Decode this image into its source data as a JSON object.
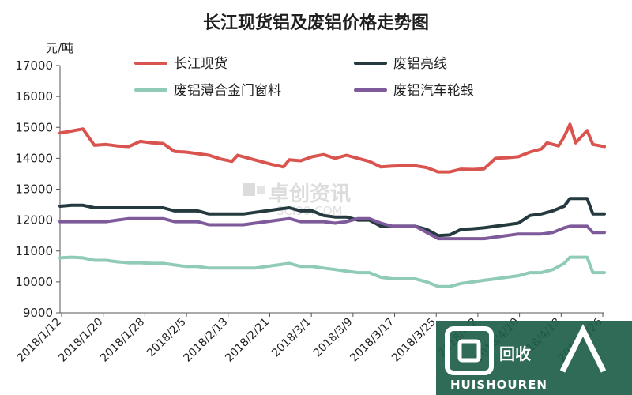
{
  "chart_data": {
    "type": "line",
    "title": "长江现货铝及废铝价格走势图",
    "ylabel": "元/吨",
    "xlabel": "",
    "ylim": [
      9000,
      17000
    ],
    "yticks": [
      9000,
      10000,
      11000,
      12000,
      13000,
      14000,
      15000,
      16000,
      17000
    ],
    "xticks": [
      "2018/1/12",
      "2018/1/20",
      "2018/1/28",
      "2018/2/5",
      "2018/2/13",
      "2018/2/21",
      "2018/3/1",
      "2018/3/9",
      "2018/3/17",
      "2018/3/25",
      "2018/4/2",
      "2018/4/10",
      "2018/4/18",
      "2018/4/26"
    ],
    "legend_position": "top",
    "grid": false,
    "series": [
      {
        "name": "长江现货",
        "color": "#d9534f",
        "points": [
          [
            0,
            14820
          ],
          [
            2,
            14880
          ],
          [
            4,
            14950
          ],
          [
            6,
            14420
          ],
          [
            8,
            14450
          ],
          [
            10,
            14400
          ],
          [
            12,
            14380
          ],
          [
            14,
            14550
          ],
          [
            16,
            14500
          ],
          [
            18,
            14480
          ],
          [
            20,
            14220
          ],
          [
            22,
            14200
          ],
          [
            24,
            14150
          ],
          [
            26,
            14100
          ],
          [
            28,
            13980
          ],
          [
            30,
            13900
          ],
          [
            31,
            14100
          ],
          [
            33,
            14000
          ],
          [
            35,
            13900
          ],
          [
            37,
            13800
          ],
          [
            39,
            13720
          ],
          [
            40,
            13950
          ],
          [
            42,
            13920
          ],
          [
            44,
            14050
          ],
          [
            46,
            14120
          ],
          [
            48,
            14000
          ],
          [
            50,
            14100
          ],
          [
            52,
            14000
          ],
          [
            54,
            13900
          ],
          [
            56,
            13720
          ],
          [
            58,
            13750
          ],
          [
            60,
            13760
          ],
          [
            62,
            13760
          ],
          [
            64,
            13700
          ],
          [
            66,
            13560
          ],
          [
            68,
            13560
          ],
          [
            70,
            13650
          ],
          [
            72,
            13640
          ],
          [
            74,
            13660
          ],
          [
            76,
            14000
          ],
          [
            78,
            14020
          ],
          [
            80,
            14050
          ],
          [
            82,
            14200
          ],
          [
            84,
            14300
          ],
          [
            85,
            14500
          ],
          [
            87,
            14400
          ],
          [
            88,
            14700
          ],
          [
            89,
            15100
          ],
          [
            90,
            14500
          ],
          [
            92,
            14900
          ],
          [
            93,
            14450
          ],
          [
            95,
            14380
          ]
        ]
      },
      {
        "name": "废铝亮线",
        "color": "#243a3e",
        "points": [
          [
            0,
            12450
          ],
          [
            2,
            12480
          ],
          [
            4,
            12480
          ],
          [
            6,
            12400
          ],
          [
            8,
            12400
          ],
          [
            10,
            12400
          ],
          [
            12,
            12400
          ],
          [
            14,
            12400
          ],
          [
            16,
            12400
          ],
          [
            18,
            12400
          ],
          [
            20,
            12300
          ],
          [
            22,
            12300
          ],
          [
            24,
            12300
          ],
          [
            26,
            12200
          ],
          [
            28,
            12200
          ],
          [
            30,
            12200
          ],
          [
            32,
            12200
          ],
          [
            34,
            12250
          ],
          [
            36,
            12300
          ],
          [
            38,
            12350
          ],
          [
            40,
            12400
          ],
          [
            42,
            12300
          ],
          [
            44,
            12300
          ],
          [
            46,
            12150
          ],
          [
            48,
            12100
          ],
          [
            50,
            12100
          ],
          [
            52,
            12000
          ],
          [
            54,
            12000
          ],
          [
            56,
            11800
          ],
          [
            58,
            11800
          ],
          [
            60,
            11800
          ],
          [
            62,
            11800
          ],
          [
            64,
            11700
          ],
          [
            66,
            11500
          ],
          [
            68,
            11520
          ],
          [
            70,
            11700
          ],
          [
            72,
            11720
          ],
          [
            74,
            11750
          ],
          [
            76,
            11800
          ],
          [
            78,
            11850
          ],
          [
            80,
            11900
          ],
          [
            82,
            12150
          ],
          [
            84,
            12200
          ],
          [
            86,
            12300
          ],
          [
            88,
            12450
          ],
          [
            89,
            12700
          ],
          [
            91,
            12700
          ],
          [
            92,
            12700
          ],
          [
            93,
            12200
          ],
          [
            95,
            12200
          ]
        ]
      },
      {
        "name": "废铝薄合金门窗料",
        "color": "#8fcbb5",
        "points": [
          [
            0,
            10780
          ],
          [
            2,
            10800
          ],
          [
            4,
            10780
          ],
          [
            6,
            10700
          ],
          [
            8,
            10700
          ],
          [
            10,
            10650
          ],
          [
            12,
            10620
          ],
          [
            14,
            10620
          ],
          [
            16,
            10600
          ],
          [
            18,
            10600
          ],
          [
            20,
            10550
          ],
          [
            22,
            10500
          ],
          [
            24,
            10500
          ],
          [
            26,
            10450
          ],
          [
            28,
            10450
          ],
          [
            30,
            10450
          ],
          [
            32,
            10450
          ],
          [
            34,
            10450
          ],
          [
            36,
            10500
          ],
          [
            38,
            10550
          ],
          [
            40,
            10600
          ],
          [
            42,
            10500
          ],
          [
            44,
            10500
          ],
          [
            46,
            10450
          ],
          [
            48,
            10400
          ],
          [
            50,
            10350
          ],
          [
            52,
            10300
          ],
          [
            54,
            10300
          ],
          [
            56,
            10150
          ],
          [
            58,
            10100
          ],
          [
            60,
            10100
          ],
          [
            62,
            10100
          ],
          [
            64,
            10000
          ],
          [
            66,
            9850
          ],
          [
            68,
            9850
          ],
          [
            70,
            9950
          ],
          [
            72,
            10000
          ],
          [
            74,
            10050
          ],
          [
            76,
            10100
          ],
          [
            78,
            10150
          ],
          [
            80,
            10200
          ],
          [
            82,
            10300
          ],
          [
            84,
            10300
          ],
          [
            86,
            10400
          ],
          [
            88,
            10600
          ],
          [
            89,
            10800
          ],
          [
            91,
            10800
          ],
          [
            92,
            10800
          ],
          [
            93,
            10300
          ],
          [
            95,
            10300
          ]
        ]
      },
      {
        "name": "废铝汽车轮毂",
        "color": "#7e5a9b",
        "points": [
          [
            0,
            11950
          ],
          [
            2,
            11950
          ],
          [
            4,
            11950
          ],
          [
            6,
            11950
          ],
          [
            8,
            11950
          ],
          [
            10,
            12000
          ],
          [
            12,
            12050
          ],
          [
            14,
            12050
          ],
          [
            16,
            12050
          ],
          [
            18,
            12050
          ],
          [
            20,
            11950
          ],
          [
            22,
            11950
          ],
          [
            24,
            11950
          ],
          [
            26,
            11850
          ],
          [
            28,
            11850
          ],
          [
            30,
            11850
          ],
          [
            32,
            11850
          ],
          [
            34,
            11900
          ],
          [
            36,
            11950
          ],
          [
            38,
            12000
          ],
          [
            40,
            12050
          ],
          [
            42,
            11950
          ],
          [
            44,
            11950
          ],
          [
            46,
            11950
          ],
          [
            48,
            11900
          ],
          [
            50,
            11950
          ],
          [
            52,
            12050
          ],
          [
            54,
            12050
          ],
          [
            56,
            11900
          ],
          [
            58,
            11800
          ],
          [
            60,
            11800
          ],
          [
            62,
            11800
          ],
          [
            64,
            11600
          ],
          [
            66,
            11400
          ],
          [
            68,
            11400
          ],
          [
            70,
            11400
          ],
          [
            72,
            11400
          ],
          [
            74,
            11400
          ],
          [
            76,
            11450
          ],
          [
            78,
            11500
          ],
          [
            80,
            11550
          ],
          [
            82,
            11550
          ],
          [
            84,
            11550
          ],
          [
            86,
            11600
          ],
          [
            88,
            11750
          ],
          [
            89,
            11800
          ],
          [
            91,
            11800
          ],
          [
            92,
            11800
          ],
          [
            93,
            11600
          ],
          [
            95,
            11600
          ]
        ]
      }
    ]
  },
  "watermark": {
    "main": "卓创资讯",
    "sub": "SCI99.COM"
  },
  "logo": {
    "text": "回收",
    "sub": "HUISHOUREN",
    "color": "#1e5e4a"
  }
}
